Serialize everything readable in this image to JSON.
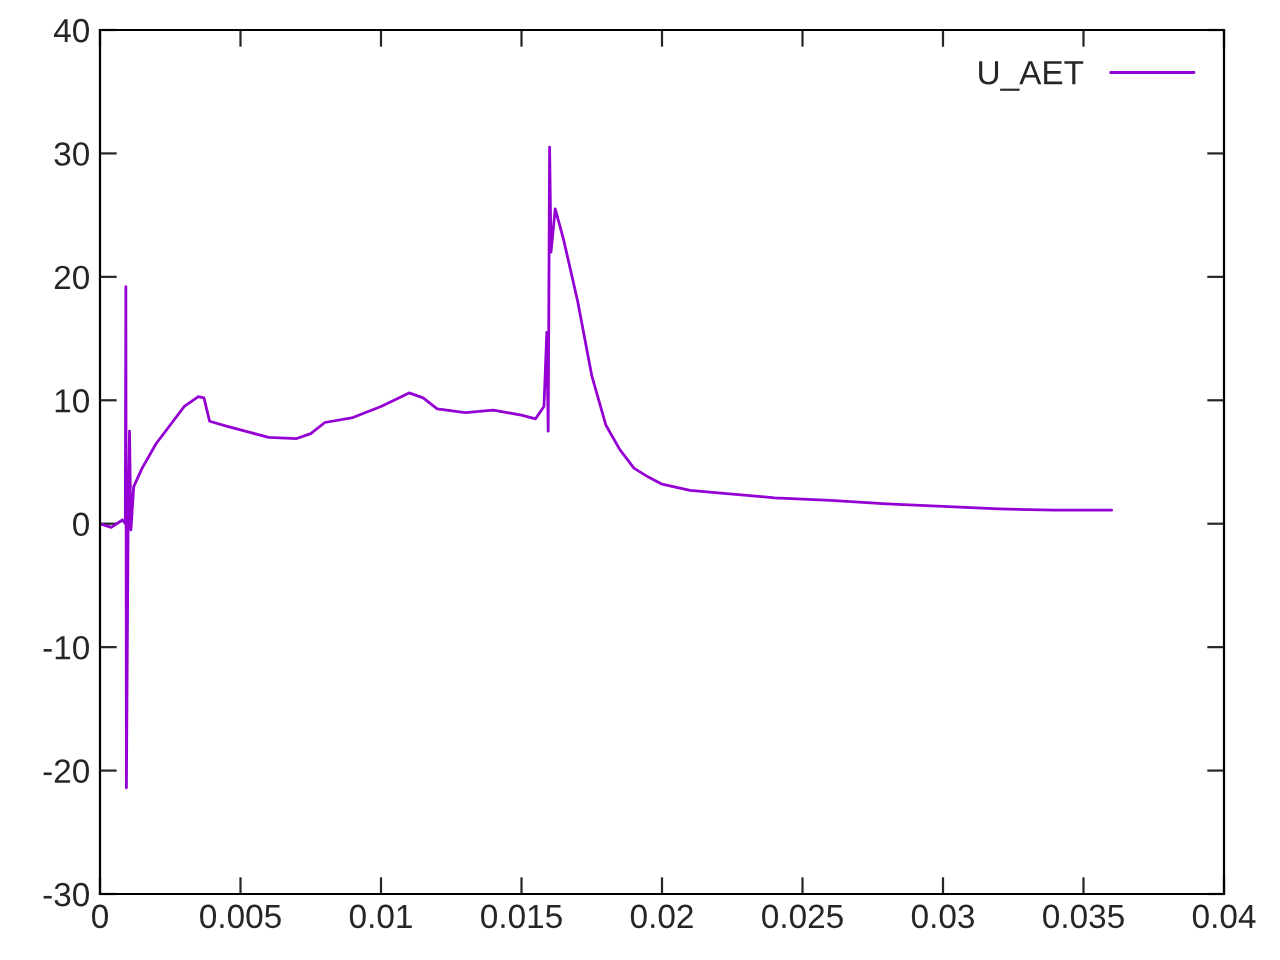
{
  "chart_data": {
    "type": "line",
    "x": [
      0,
      0.0004,
      0.0008,
      0.0009,
      0.00092,
      0.00094,
      0.001,
      0.00105,
      0.0011,
      0.0012,
      0.0015,
      0.002,
      0.0025,
      0.003,
      0.0035,
      0.0037,
      0.0039,
      0.0045,
      0.005,
      0.006,
      0.007,
      0.0075,
      0.008,
      0.009,
      0.01,
      0.011,
      0.0115,
      0.012,
      0.013,
      0.014,
      0.015,
      0.0155,
      0.0158,
      0.0159,
      0.01595,
      0.016,
      0.01605,
      0.0162,
      0.0165,
      0.017,
      0.0175,
      0.018,
      0.0185,
      0.019,
      0.0195,
      0.02,
      0.021,
      0.022,
      0.024,
      0.026,
      0.028,
      0.03,
      0.032,
      0.034,
      0.036
    ],
    "series": [
      {
        "name": "U_AET",
        "color": "#9400d3",
        "values": [
          0,
          -0.3,
          0.3,
          0,
          19.2,
          -21.4,
          0,
          7.5,
          -0.5,
          3,
          4.5,
          6.5,
          8,
          9.5,
          10.3,
          10.2,
          8.3,
          7.9,
          7.6,
          7.0,
          6.9,
          7.3,
          8.2,
          8.6,
          9.5,
          10.6,
          10.2,
          9.3,
          9.0,
          9.2,
          8.8,
          8.5,
          9.5,
          15.5,
          7.5,
          30.5,
          22,
          25.5,
          23,
          18,
          12,
          8,
          6,
          4.5,
          3.8,
          3.2,
          2.7,
          2.5,
          2.1,
          1.9,
          1.6,
          1.4,
          1.2,
          1.1,
          1.1
        ]
      }
    ],
    "xlim": [
      0,
      0.04
    ],
    "ylim": [
      -30,
      40
    ],
    "xticks": [
      0,
      0.005,
      0.01,
      0.015,
      0.02,
      0.025,
      0.03,
      0.035,
      0.04
    ],
    "yticks": [
      -30,
      -20,
      -10,
      0,
      10,
      20,
      30,
      40
    ],
    "legend": "top right",
    "grid": false,
    "marker": "none",
    "line_style": "solid"
  }
}
